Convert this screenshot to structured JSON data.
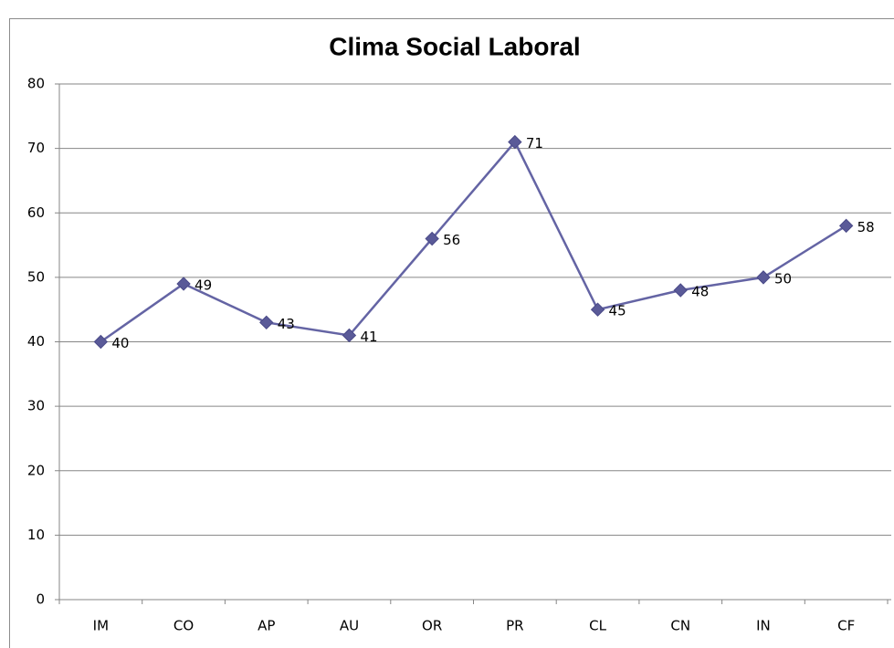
{
  "chart_data": {
    "type": "line",
    "title": "Clima Social Laboral",
    "categories": [
      "IM",
      "CO",
      "AP",
      "AU",
      "OR",
      "PR",
      "CL",
      "CN",
      "IN",
      "CF"
    ],
    "series": [
      {
        "name": "Clima Social Laboral",
        "color": "#6464a4",
        "values": [
          40,
          49,
          43,
          41,
          56,
          71,
          45,
          48,
          50,
          58
        ]
      }
    ],
    "ylim": [
      0,
      80
    ],
    "yticks": [
      0,
      10,
      20,
      30,
      40,
      50,
      60,
      70,
      80
    ],
    "grid": true
  }
}
